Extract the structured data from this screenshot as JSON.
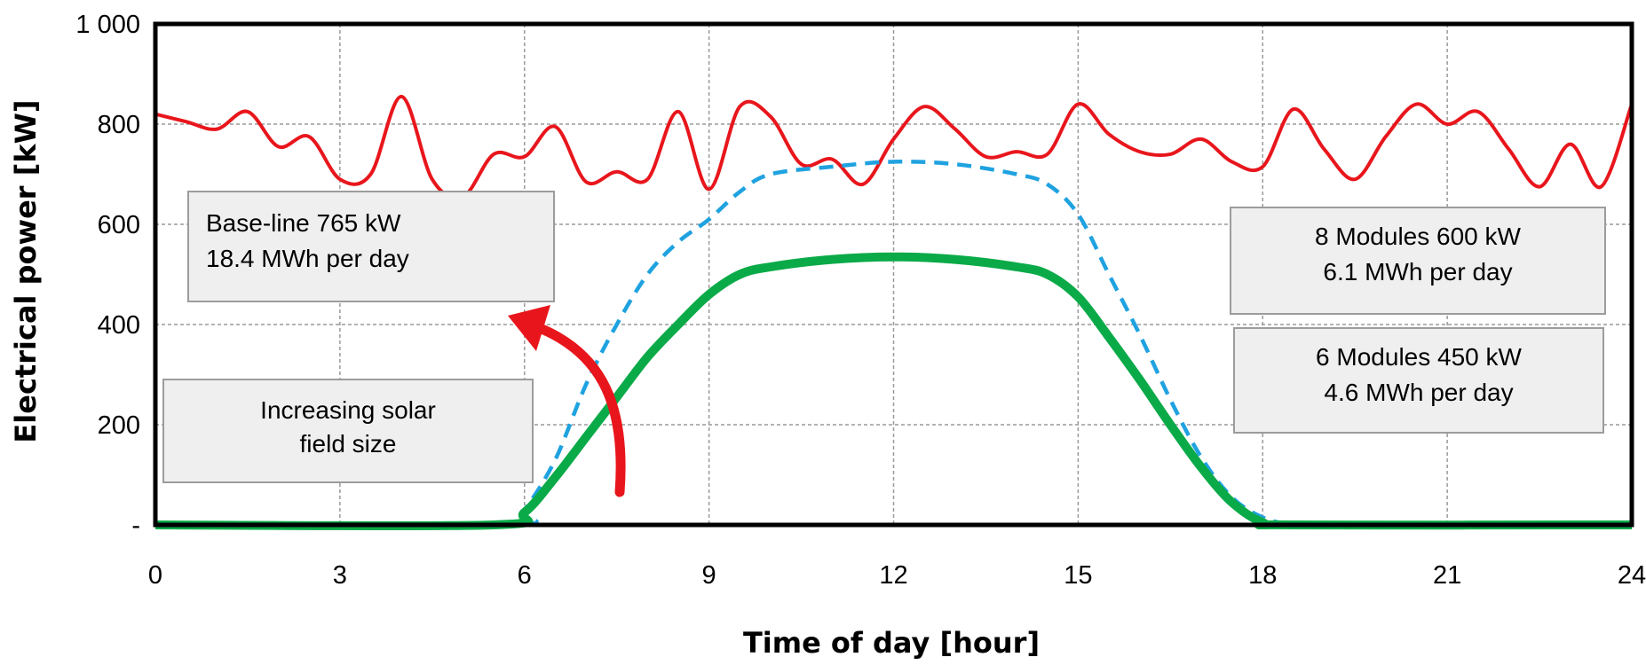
{
  "chart_data": {
    "type": "line",
    "title": "",
    "xlabel": "Time of day [hour]",
    "ylabel": "Electrical power [kW]",
    "xlim": [
      0,
      24
    ],
    "ylim": [
      0,
      1000
    ],
    "x_ticks": [
      0,
      3,
      6,
      9,
      12,
      15,
      18,
      21,
      24
    ],
    "x_tick_labels": [
      "0",
      "3",
      "6",
      "9",
      "12",
      "15",
      "18",
      "21",
      "24"
    ],
    "y_ticks": [
      0,
      200,
      400,
      600,
      800,
      1000
    ],
    "y_tick_labels": [
      "-",
      "200",
      "400",
      "600",
      "800",
      "1 000"
    ],
    "grid": true,
    "series": [
      {
        "style": "solid",
        "color": "#e8161c",
        "x": [
          0,
          0.5,
          1,
          1.5,
          2,
          2.5,
          3,
          3.5,
          4,
          4.5,
          5,
          5.5,
          6,
          6.5,
          7,
          7.5,
          8,
          8.5,
          9,
          9.5,
          10,
          10.5,
          11,
          11.5,
          12,
          12.5,
          13,
          13.5,
          14,
          14.5,
          15,
          15.5,
          16,
          16.5,
          17,
          17.5,
          18,
          18.5,
          19,
          19.5,
          20,
          20.5,
          21,
          21.5,
          22,
          22.5,
          23,
          23.5,
          24
        ],
        "values": [
          820,
          805,
          790,
          825,
          755,
          775,
          690,
          700,
          855,
          690,
          655,
          740,
          735,
          795,
          685,
          705,
          690,
          825,
          670,
          835,
          815,
          720,
          730,
          680,
          770,
          835,
          790,
          735,
          745,
          740,
          840,
          780,
          745,
          740,
          770,
          725,
          715,
          830,
          750,
          690,
          775,
          840,
          800,
          825,
          750,
          675,
          760,
          675,
          840
        ]
      },
      {
        "style": "dashed",
        "color": "#1fa2e0",
        "x": [
          0,
          5.7,
          6,
          6.5,
          7,
          7.5,
          8,
          8.5,
          9,
          9.5,
          10,
          11,
          12,
          13,
          14,
          14.5,
          15,
          15.5,
          16,
          16.5,
          17,
          17.5,
          18,
          18.5,
          19,
          24
        ],
        "values": [
          0,
          0,
          30,
          130,
          280,
          400,
          500,
          565,
          610,
          665,
          700,
          715,
          725,
          720,
          700,
          680,
          620,
          500,
          380,
          250,
          135,
          55,
          15,
          0,
          0,
          0
        ]
      },
      {
        "style": "solid",
        "color": "#0aaa48",
        "x": [
          0,
          5.5,
          6,
          6.5,
          7,
          7.5,
          8,
          8.5,
          9,
          9.5,
          10,
          11,
          12,
          13,
          14,
          14.5,
          15,
          15.5,
          16,
          16.5,
          17,
          17.5,
          18,
          18.5,
          24
        ],
        "values": [
          0,
          0,
          25,
          95,
          175,
          255,
          335,
          400,
          460,
          500,
          515,
          530,
          535,
          530,
          515,
          500,
          455,
          375,
          290,
          200,
          115,
          45,
          5,
          0,
          0
        ]
      }
    ],
    "annotations": [
      {
        "lines": [
          "Base-line 765 kW",
          "18.4 MWh per day"
        ],
        "align": "left"
      },
      {
        "lines": [
          "Increasing solar",
          "field size"
        ],
        "align": "center"
      },
      {
        "lines": [
          "8 Modules 600 kW",
          "6.1 MWh per day"
        ],
        "align": "center"
      },
      {
        "lines": [
          "6 Modules 450 kW",
          "4.6 MWh per day"
        ],
        "align": "center"
      }
    ]
  }
}
